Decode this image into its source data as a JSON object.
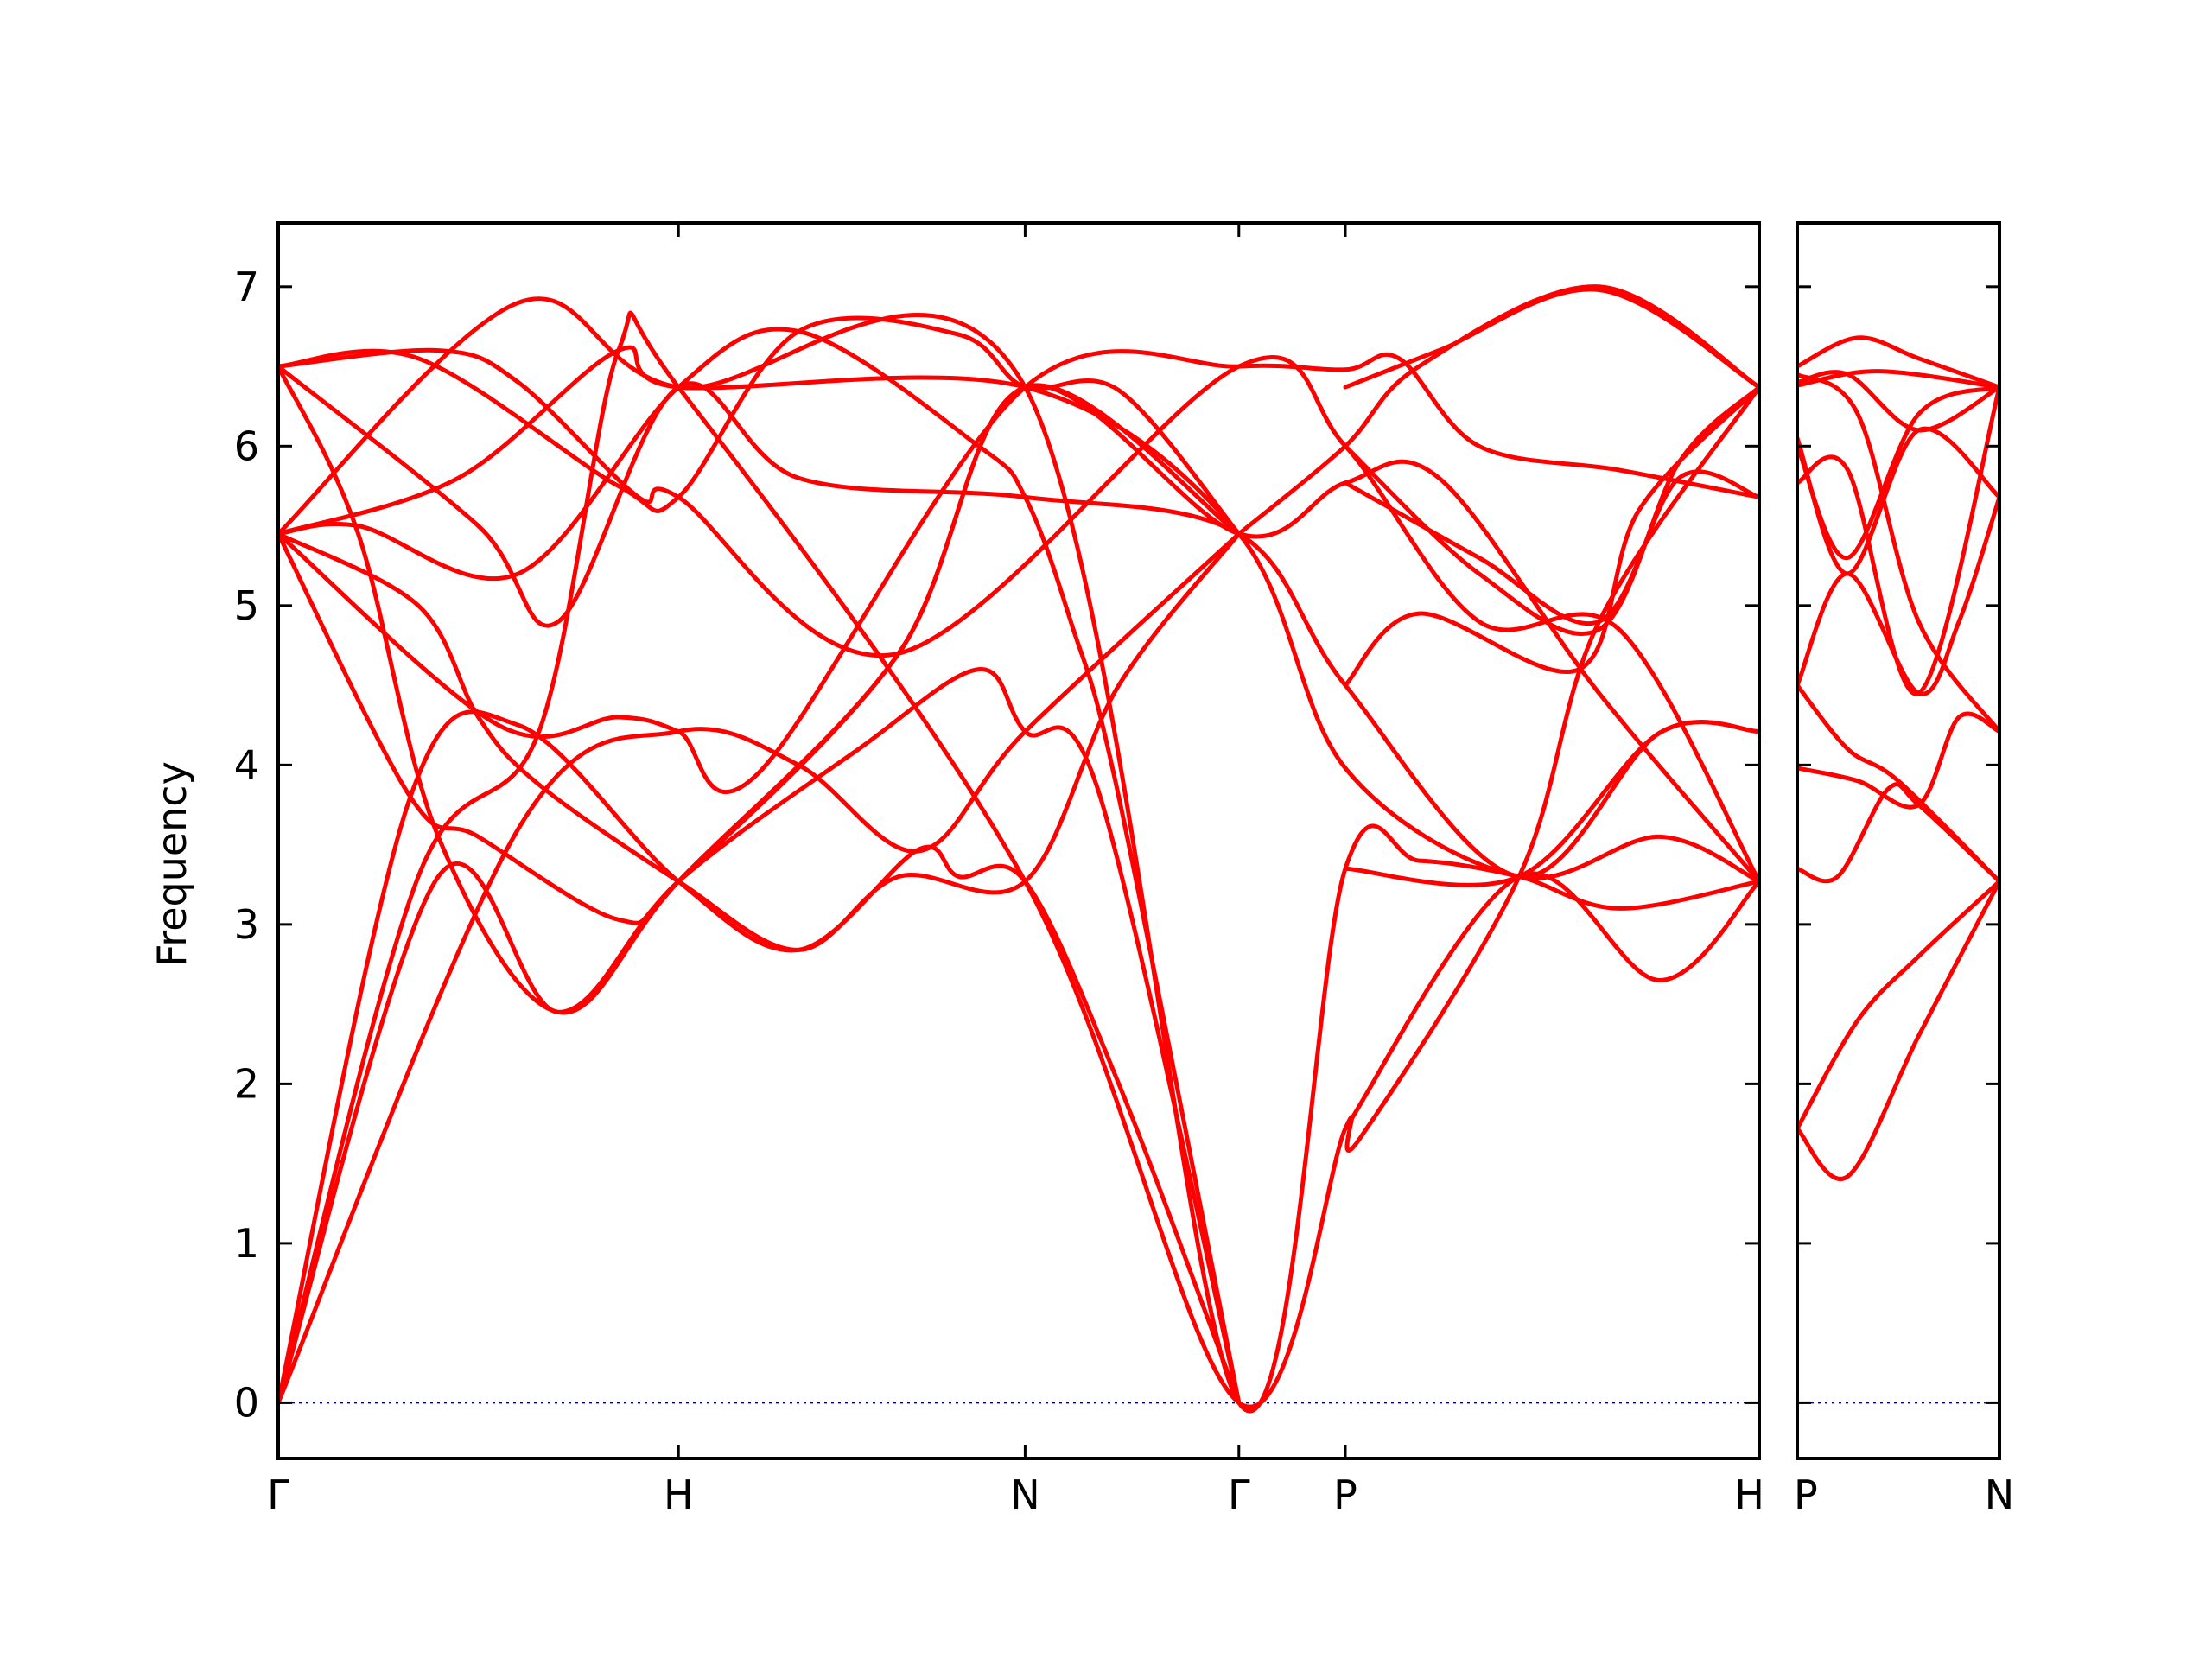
{
  "chart_data": {
    "type": "line",
    "title": "",
    "ylabel": "Frequency",
    "xlabel": "",
    "ylim": [
      -0.35,
      7.4
    ],
    "yticks": [
      0,
      1,
      2,
      3,
      4,
      5,
      6,
      7
    ],
    "grid": false,
    "legend": "none",
    "colors": {
      "band": "#ff0000",
      "zero_line": "#00008b",
      "axis": "#000000"
    },
    "panels": [
      {
        "name": "panel-1",
        "xlim": [
          0,
          3.7
        ],
        "ticks": [
          {
            "x": 0.0,
            "label": "Γ"
          },
          {
            "x": 1.0,
            "label": "H"
          },
          {
            "x": 1.866,
            "label": "N"
          },
          {
            "x": 2.4,
            "label": "Γ"
          },
          {
            "x": 2.666,
            "label": "P"
          },
          {
            "x": 3.7,
            "label": "H"
          }
        ],
        "bands": [
          [
            [
              0,
              0
            ],
            [
              0.33,
              3.8
            ],
            [
              0.6,
              4.25
            ],
            [
              1.0,
              3.27
            ],
            [
              1.3,
              2.84
            ],
            [
              1.6,
              3.47
            ],
            [
              1.7,
              3.3
            ],
            [
              1.866,
              3.27
            ],
            [
              2.1,
              2.0
            ],
            [
              2.4,
              0.0
            ]
          ],
          [
            [
              0,
              0
            ],
            [
              0.4,
              3.3
            ],
            [
              0.7,
              2.45
            ],
            [
              1.0,
              3.27
            ],
            [
              1.45,
              4.1
            ],
            [
              1.75,
              4.6
            ],
            [
              1.866,
              4.21
            ],
            [
              2.05,
              3.83
            ],
            [
              2.4,
              0.0
            ]
          ],
          [
            [
              0,
              0
            ],
            [
              0.6,
              3.6
            ],
            [
              1.0,
              4.21
            ],
            [
              1.3,
              4.0
            ],
            [
              1.6,
              3.46
            ],
            [
              1.866,
              4.21
            ],
            [
              2.4,
              5.45
            ]
          ],
          [
            [
              0,
              5.45
            ],
            [
              0.33,
              3.8
            ],
            [
              0.5,
              3.55
            ],
            [
              0.85,
              3.03
            ],
            [
              1.0,
              3.27
            ],
            [
              1.55,
              4.7
            ],
            [
              1.866,
              6.37
            ],
            [
              2.4,
              5.45
            ]
          ],
          [
            [
              0,
              5.45
            ],
            [
              0.55,
              4.25
            ],
            [
              0.85,
              4.3
            ],
            [
              1.0,
              4.21
            ],
            [
              1.2,
              3.95
            ],
            [
              1.866,
              6.37
            ],
            [
              2.4,
              6.5
            ],
            [
              2.666,
              6.48
            ],
            [
              2.8,
              6.55
            ],
            [
              3.0,
              6.0
            ],
            [
              3.35,
              5.85
            ],
            [
              3.7,
              5.68
            ]
          ],
          [
            [
              0,
              5.45
            ],
            [
              0.35,
              5.0
            ],
            [
              0.5,
              4.3
            ],
            [
              0.65,
              3.88
            ],
            [
              1.0,
              3.27
            ],
            [
              1.3,
              2.84
            ],
            [
              1.55,
              3.3
            ],
            [
              1.866,
              3.27
            ],
            [
              2.1,
              4.5
            ],
            [
              2.4,
              5.45
            ]
          ],
          [
            [
              0,
              5.45
            ],
            [
              0.2,
              5.5
            ],
            [
              0.6,
              5.2
            ],
            [
              1.0,
              6.37
            ],
            [
              1.3,
              6.72
            ],
            [
              1.75,
              6.0
            ],
            [
              1.866,
              5.68
            ],
            [
              1.98,
              4.9
            ],
            [
              2.1,
              3.8
            ],
            [
              2.4,
              0.0
            ]
          ],
          [
            [
              0,
              6.5
            ],
            [
              0.35,
              6.55
            ],
            [
              0.85,
              5.75
            ],
            [
              1.0,
              5.68
            ],
            [
              1.3,
              6.72
            ],
            [
              1.7,
              6.7
            ],
            [
              1.866,
              6.37
            ],
            [
              2.1,
              6.35
            ],
            [
              2.4,
              5.45
            ]
          ],
          [
            [
              0,
              6.5
            ],
            [
              0.4,
              6.6
            ],
            [
              0.6,
              6.4
            ],
            [
              0.9,
              5.68
            ],
            [
              1.0,
              5.68
            ],
            [
              1.55,
              4.7
            ],
            [
              2.4,
              6.5
            ],
            [
              2.666,
              6.0
            ],
            [
              3.0,
              4.9
            ],
            [
              3.35,
              4.85
            ],
            [
              3.7,
              3.27
            ]
          ],
          [
            [
              0,
              6.5
            ],
            [
              0.5,
              5.5
            ],
            [
              0.7,
              4.9
            ],
            [
              1.0,
              6.37
            ],
            [
              1.3,
              5.8
            ],
            [
              1.866,
              5.68
            ],
            [
              2.4,
              5.45
            ],
            [
              2.666,
              4.5
            ],
            [
              3.1,
              3.3
            ],
            [
              3.45,
              4.2
            ],
            [
              3.7,
              4.21
            ]
          ],
          [
            [
              0,
              5.45
            ],
            [
              0.6,
              6.9
            ],
            [
              1.0,
              6.37
            ],
            [
              1.866,
              6.37
            ],
            [
              2.4,
              0.0
            ],
            [
              2.666,
              3.35
            ],
            [
              2.85,
              3.4
            ],
            [
              3.1,
              3.3
            ],
            [
              3.35,
              3.1
            ],
            [
              3.7,
              3.27
            ]
          ],
          [
            [
              0,
              6.5
            ],
            [
              0.2,
              5.45
            ],
            [
              0.4,
              3.55
            ],
            [
              0.7,
              2.45
            ],
            [
              1.0,
              3.27
            ],
            [
              1.55,
              4.7
            ],
            [
              1.866,
              6.37
            ],
            [
              2.4,
              5.45
            ],
            [
              2.666,
              5.77
            ],
            [
              2.9,
              5.8
            ],
            [
              3.3,
              4.45
            ],
            [
              3.7,
              3.27
            ]
          ],
          [
            [
              0,
              5.45
            ],
            [
              0.45,
              5.8
            ],
            [
              0.85,
              6.6
            ],
            [
              1.0,
              6.37
            ],
            [
              1.866,
              6.37
            ],
            [
              2.4,
              5.45
            ],
            [
              2.666,
              3.98
            ],
            [
              3.1,
              3.3
            ],
            [
              3.45,
              3.55
            ],
            [
              3.7,
              3.27
            ]
          ],
          [
            [
              0,
              0
            ],
            [
              0.35,
              3.3
            ],
            [
              0.65,
              4.2
            ],
            [
              0.85,
              6.6
            ],
            [
              1.0,
              6.37
            ],
            [
              1.866,
              3.27
            ],
            [
              2.4,
              0.0
            ],
            [
              2.666,
              1.72
            ],
            [
              2.7,
              1.65
            ],
            [
              3.1,
              3.3
            ],
            [
              3.3,
              4.9
            ],
            [
              3.7,
              6.37
            ]
          ],
          [
            [
              2.4,
              5.45
            ],
            [
              2.666,
              6.0
            ],
            [
              2.85,
              6.5
            ],
            [
              3.3,
              7.0
            ],
            [
              3.7,
              6.37
            ]
          ],
          [
            [
              2.666,
              1.72
            ],
            [
              3.1,
              3.3
            ],
            [
              3.45,
              2.65
            ],
            [
              3.7,
              3.27
            ]
          ],
          [
            [
              2.666,
              4.5
            ],
            [
              2.85,
              4.95
            ],
            [
              3.25,
              4.6
            ],
            [
              3.4,
              5.6
            ],
            [
              3.7,
              6.37
            ]
          ],
          [
            [
              2.666,
              6.37
            ],
            [
              2.9,
              6.6
            ],
            [
              3.3,
              6.98
            ],
            [
              3.7,
              6.37
            ]
          ],
          [
            [
              2.666,
              3.35
            ],
            [
              3.1,
              3.3
            ],
            [
              3.45,
              4.2
            ],
            [
              3.7,
              4.21
            ]
          ],
          [
            [
              2.666,
              6.0
            ],
            [
              3.0,
              5.2
            ],
            [
              3.3,
              4.85
            ],
            [
              3.5,
              5.9
            ],
            [
              3.7,
              6.37
            ]
          ],
          [
            [
              2.666,
              5.77
            ],
            [
              3.0,
              5.3
            ],
            [
              3.3,
              4.9
            ],
            [
              3.5,
              5.8
            ],
            [
              3.7,
              5.68
            ]
          ]
        ]
      },
      {
        "name": "panel-2",
        "xlim": [
          0,
          1
        ],
        "ticks": [
          {
            "x": 0.0,
            "label": "P"
          },
          {
            "x": 1.0,
            "label": "N"
          }
        ],
        "bands": [
          [
            [
              0,
              1.72
            ],
            [
              0.25,
              1.42
            ],
            [
              0.6,
              2.3
            ],
            [
              1.0,
              3.27
            ]
          ],
          [
            [
              0,
              1.72
            ],
            [
              0.3,
              2.4
            ],
            [
              0.6,
              2.8
            ],
            [
              1.0,
              3.27
            ]
          ],
          [
            [
              0,
              3.35
            ],
            [
              0.2,
              3.3
            ],
            [
              0.45,
              3.85
            ],
            [
              0.6,
              3.75
            ],
            [
              1.0,
              3.27
            ]
          ],
          [
            [
              0,
              3.98
            ],
            [
              0.3,
              3.9
            ],
            [
              0.6,
              3.75
            ],
            [
              0.8,
              4.3
            ],
            [
              1.0,
              4.21
            ]
          ],
          [
            [
              0,
              4.5
            ],
            [
              0.25,
              4.1
            ],
            [
              0.5,
              3.9
            ],
            [
              1.0,
              3.27
            ]
          ],
          [
            [
              0,
              4.5
            ],
            [
              0.25,
              5.2
            ],
            [
              0.6,
              4.45
            ],
            [
              0.8,
              4.9
            ],
            [
              1.0,
              5.68
            ]
          ],
          [
            [
              0,
              5.77
            ],
            [
              0.25,
              5.85
            ],
            [
              0.6,
              4.45
            ],
            [
              1.0,
              6.37
            ]
          ],
          [
            [
              0,
              6.0
            ],
            [
              0.25,
              5.3
            ],
            [
              0.6,
              6.2
            ],
            [
              1.0,
              6.37
            ]
          ],
          [
            [
              0,
              6.05
            ],
            [
              0.25,
              5.2
            ],
            [
              0.6,
              6.1
            ],
            [
              1.0,
              5.68
            ]
          ],
          [
            [
              0,
              6.4
            ],
            [
              0.25,
              6.45
            ],
            [
              0.6,
              6.1
            ],
            [
              1.0,
              6.37
            ]
          ],
          [
            [
              0,
              6.5
            ],
            [
              0.3,
              6.68
            ],
            [
              0.6,
              6.55
            ],
            [
              1.0,
              6.37
            ]
          ],
          [
            [
              0,
              6.38
            ],
            [
              0.4,
              6.47
            ],
            [
              1.0,
              6.37
            ]
          ],
          [
            [
              0,
              6.45
            ],
            [
              0.3,
              6.2
            ],
            [
              0.6,
              4.9
            ],
            [
              1.0,
              4.21
            ]
          ]
        ]
      }
    ]
  }
}
